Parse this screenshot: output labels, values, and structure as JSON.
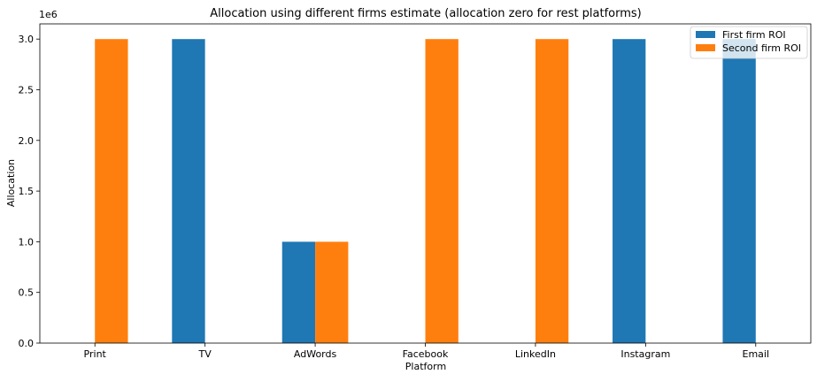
{
  "chart_data": {
    "type": "bar",
    "title": "Allocation using different firms estimate (allocation zero for rest platforms)",
    "xlabel": "Platform",
    "ylabel": "Allocation",
    "y_scale_label": "1e6",
    "y_scale_factor": 1000000,
    "ylim": [
      0,
      3150000
    ],
    "yticks": [
      0,
      500000,
      1000000,
      1500000,
      2000000,
      2500000,
      3000000
    ],
    "ytick_labels": [
      "0.0",
      "0.5",
      "1.0",
      "1.5",
      "2.0",
      "2.5",
      "3.0"
    ],
    "categories": [
      "Print",
      "TV",
      "AdWords",
      "Facebook",
      "LinkedIn",
      "Instagram",
      "Email"
    ],
    "series": [
      {
        "name": "First firm ROI",
        "color": "#1f77b4",
        "values": [
          0,
          3000000,
          1000000,
          0,
          0,
          3000000,
          3000000
        ]
      },
      {
        "name": "Second firm ROI",
        "color": "#ff7f0e",
        "values": [
          3000000,
          0,
          1000000,
          3000000,
          3000000,
          0,
          0
        ]
      }
    ],
    "grid": false,
    "legend_position": "top-right"
  }
}
